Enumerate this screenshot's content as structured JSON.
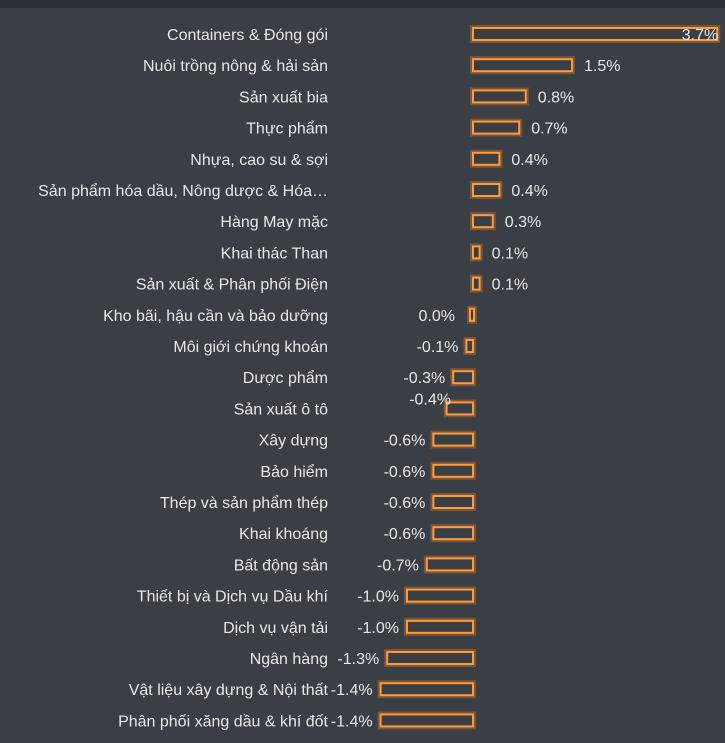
{
  "chart_data": {
    "type": "bar",
    "orientation": "horizontal",
    "categories": [
      "Containers & Đóng gói",
      "Nuôi trồng nông & hải sản",
      "Sản xuất bia",
      "Thực phẩm",
      "Nhựa, cao su & sợi",
      "Sản phẩm hóa dầu, Nông dược & Hóa…",
      "Hàng May mặc",
      "Khai thác Than",
      "Sản xuất & Phân phối Điện",
      "Kho bãi, hậu cần và bảo dưỡng",
      "Môi giới chứng khoán",
      "Dược phẩm",
      "Sản xuất ô tô",
      "Xây dựng",
      "Bảo hiểm",
      "Thép và sản phẩm thép",
      "Khai khoáng",
      "Bất động sản",
      "Thiết bị và Dịch vụ Dầu khí",
      "Dịch vụ vận tải",
      "Ngân hàng",
      "Vật liệu xây dựng & Nội thất",
      "Phân phối xăng dầu & khí đốt"
    ],
    "values": [
      3.7,
      1.5,
      0.8,
      0.7,
      0.4,
      0.4,
      0.3,
      0.1,
      0.1,
      0.0,
      -0.1,
      -0.3,
      -0.4,
      -0.6,
      -0.6,
      -0.6,
      -0.6,
      -0.7,
      -1.0,
      -1.0,
      -1.3,
      -1.4,
      -1.4
    ],
    "value_labels": [
      "3.7%",
      "1.5%",
      "0.8%",
      "0.7%",
      "0.4%",
      "0.4%",
      "0.3%",
      "0.1%",
      "0.1%",
      "0.0%",
      "-0.1%",
      "-0.3%",
      "-0.4%",
      "-0.6%",
      "-0.6%",
      "-0.6%",
      "-0.6%",
      "-0.7%",
      "-1.0%",
      "-1.0%",
      "-1.3%",
      "-1.4%",
      "-1.4%"
    ],
    "title": "",
    "xlabel": "",
    "ylabel": "",
    "xlim": [
      -1.5,
      3.7
    ],
    "grid": false,
    "colors": {
      "bar_stroke": "#ff9a3a",
      "bar_fill": "#3a3f46",
      "background": "#3a3f46",
      "text": "#e8e8e8"
    }
  }
}
